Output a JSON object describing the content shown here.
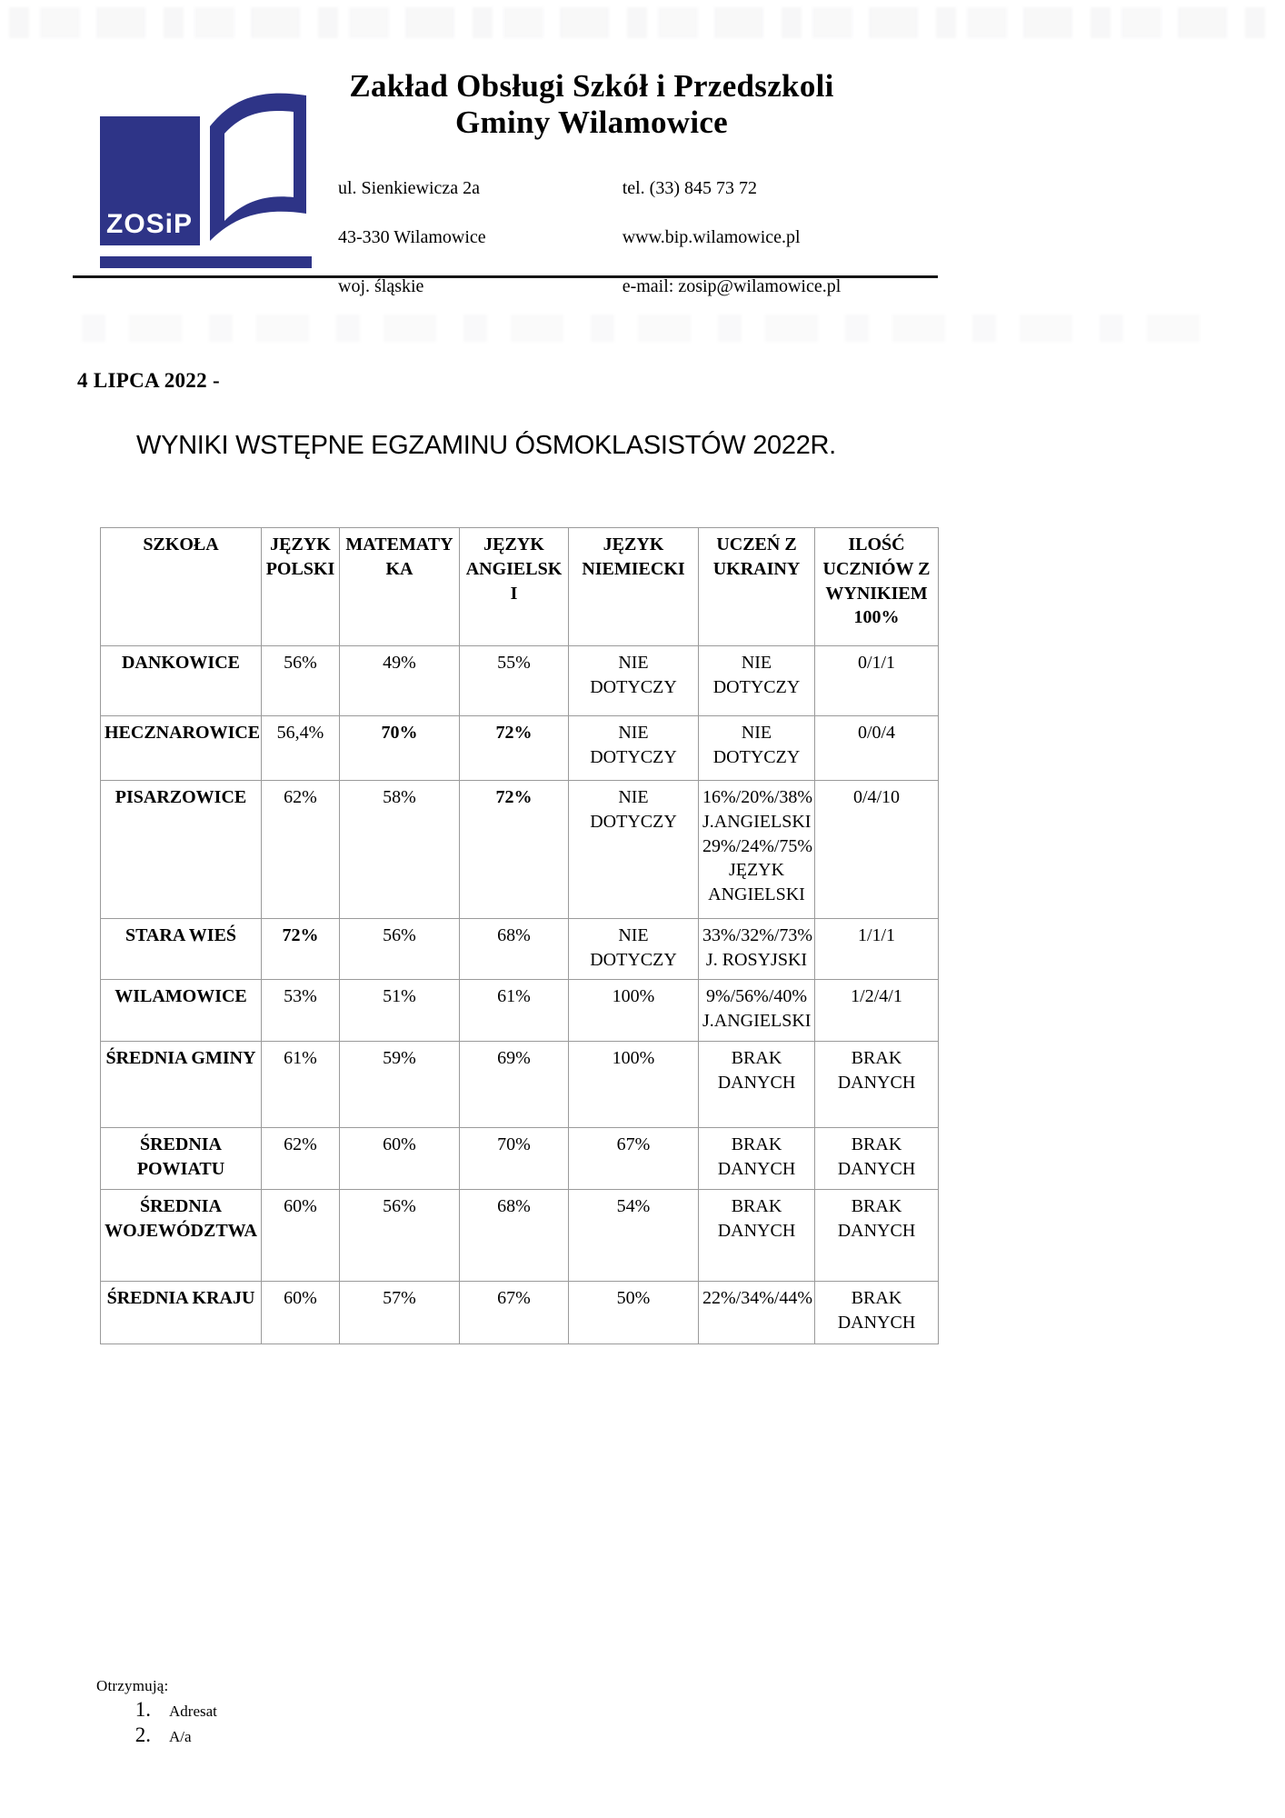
{
  "header": {
    "logo_text": "ZOSiP",
    "org_line1": "Zakład Obsługi Szkół i Przedszkoli",
    "org_line2": "Gminy Wilamowice",
    "address": [
      "ul. Sienkiewicza 2a",
      "43-330 Wilamowice",
      "woj. śląskie"
    ],
    "contact": [
      "tel.  (33) 845 73 72",
      "www.bip.wilamowice.pl",
      "e-mail: zosip@wilamowice.pl"
    ]
  },
  "date_line": "4 LIPCA 2022 -",
  "title": "WYNIKI WSTĘPNE EGZAMINU ÓSMOKLASISTÓW 2022R.",
  "table": {
    "headers": [
      "SZKOŁA",
      "JĘZYK\nPOLSKI",
      "MATEMATY\nKA",
      "JĘZYK\nANGIELSK\nI",
      "JĘZYK\nNIEMIECKI",
      "UCZEŃ Z\nUKRAINY",
      "ILOŚĆ\nUCZNIÓW Z\nWYNIKIEM\n100%"
    ],
    "rows": [
      {
        "school": "DANKOWICE",
        "cells": [
          {
            "t": "56%"
          },
          {
            "t": "49%"
          },
          {
            "t": "55%"
          },
          {
            "t": "NIE\nDOTYCZY"
          },
          {
            "t": "NIE\nDOTYCZY"
          },
          {
            "t": "0/1/1"
          }
        ]
      },
      {
        "school": "HECZNAROWICE",
        "cells": [
          {
            "t": "56,4%"
          },
          {
            "t": "70%",
            "b": true
          },
          {
            "t": "72%",
            "b": true
          },
          {
            "t": "NIE\nDOTYCZY"
          },
          {
            "t": "NIE\nDOTYCZY"
          },
          {
            "t": "0/0/4"
          }
        ]
      },
      {
        "school": "PISARZOWICE",
        "cells": [
          {
            "t": "62%"
          },
          {
            "t": "58%"
          },
          {
            "t": "72%",
            "b": true
          },
          {
            "t": "NIE\nDOTYCZY"
          },
          {
            "t": "16%/20%/38%\nJ.ANGIELSKI\n29%/24%/75%\nJĘZYK\nANGIELSKI"
          },
          {
            "t": "0/4/10"
          }
        ]
      },
      {
        "school": "STARA WIEŚ",
        "cells": [
          {
            "t": "72%",
            "b": true
          },
          {
            "t": "56%"
          },
          {
            "t": "68%"
          },
          {
            "t": "NIE\nDOTYCZY"
          },
          {
            "t": "33%/32%/73%\nJ. ROSYJSKI"
          },
          {
            "t": "1/1/1"
          }
        ]
      },
      {
        "school": "WILAMOWICE",
        "cells": [
          {
            "t": "53%"
          },
          {
            "t": "51%"
          },
          {
            "t": "61%"
          },
          {
            "t": "100%"
          },
          {
            "t": "9%/56%/40%\nJ.ANGIELSKI"
          },
          {
            "t": "1/2/4/1"
          }
        ]
      },
      {
        "school": "ŚREDNIA GMINY",
        "cells": [
          {
            "t": "61%"
          },
          {
            "t": "59%"
          },
          {
            "t": "69%"
          },
          {
            "t": "100%"
          },
          {
            "t": "BRAK\nDANYCH"
          },
          {
            "t": "BRAK\nDANYCH"
          }
        ]
      },
      {
        "school": "ŚREDNIA POWIATU",
        "cells": [
          {
            "t": "62%"
          },
          {
            "t": "60%"
          },
          {
            "t": "70%"
          },
          {
            "t": "67%"
          },
          {
            "t": "BRAK\nDANYCH"
          },
          {
            "t": "BRAK\nDANYCH"
          }
        ]
      },
      {
        "school": "ŚREDNIA\nWOJEWÓDZTWA",
        "cells": [
          {
            "t": "60%"
          },
          {
            "t": "56%"
          },
          {
            "t": "68%"
          },
          {
            "t": "54%"
          },
          {
            "t": "BRAK\nDANYCH"
          },
          {
            "t": "BRAK\nDANYCH"
          }
        ]
      },
      {
        "school": "ŚREDNIA KRAJU",
        "cells": [
          {
            "t": "60%"
          },
          {
            "t": "57%"
          },
          {
            "t": "67%"
          },
          {
            "t": "50%"
          },
          {
            "t": "22%/34%/44%"
          },
          {
            "t": "BRAK\nDANYCH"
          }
        ]
      }
    ]
  },
  "footer": {
    "label": "Otrzymują:",
    "items": [
      "Adresat",
      "A/a"
    ]
  },
  "colors": {
    "logo_navy": "#2e3487",
    "table_border": "#9a9a9a"
  }
}
